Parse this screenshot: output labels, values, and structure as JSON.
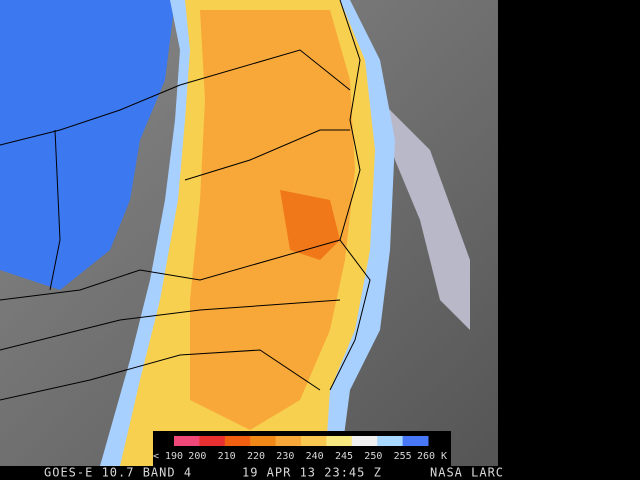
{
  "image": {
    "legend": {
      "labels": [
        "< 190",
        "200",
        "210",
        "220",
        "230",
        "240",
        "245",
        "250",
        "255",
        "260 K"
      ],
      "colors": [
        "#f04878",
        "#e83030",
        "#f06010",
        "#f08818",
        "#f8a838",
        "#f8c850",
        "#f8e880",
        "#f0f0f0",
        "#a8d8ff",
        "#4878f8"
      ]
    },
    "caption": {
      "source": "GOES-E 10.7 BAND 4",
      "time": "19 APR 13 23:45 Z",
      "credit": "NASA LARC"
    }
  }
}
